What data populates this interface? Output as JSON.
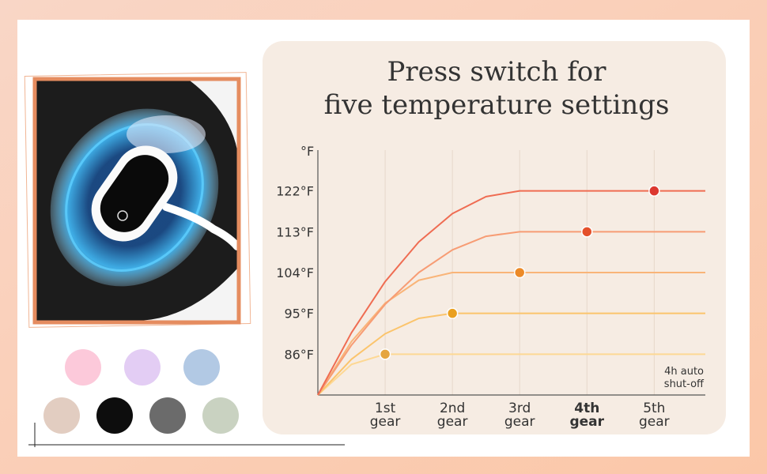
{
  "chart_data": {
    "type": "line",
    "title": [
      "Press switch for",
      "five temperature settings"
    ],
    "y_label": "°F",
    "x": [
      0,
      0.5,
      1,
      1.5,
      2,
      2.5,
      3,
      3.5,
      4,
      4.5,
      5,
      5.76
    ],
    "series": [
      {
        "color": "#fdd894",
        "values": [
          77,
          83.75,
          86,
          86,
          86,
          86,
          86,
          86,
          86,
          86,
          86,
          86
        ]
      },
      {
        "color": "#fbc46c",
        "values": [
          77,
          84.9,
          90.5,
          93.9,
          95,
          95,
          95,
          95,
          95,
          95,
          95,
          95
        ]
      },
      {
        "color": "#f9b478",
        "values": [
          77,
          88.8,
          97.25,
          102.3,
          104,
          104,
          104,
          104,
          104,
          104,
          104,
          104
        ]
      },
      {
        "color": "#f79c74",
        "values": [
          77,
          88,
          97,
          104,
          109,
          112,
          113,
          113,
          113,
          113,
          113,
          113
        ]
      },
      {
        "color": "#ef6c52",
        "values": [
          77,
          90.75,
          102,
          110.75,
          117,
          120.75,
          122,
          122,
          122,
          122,
          122,
          122
        ]
      }
    ],
    "markers": {
      "x": [
        1,
        2,
        3,
        4,
        5
      ],
      "values": [
        86,
        95,
        104,
        113,
        122
      ],
      "colors": [
        "#e5a540",
        "#eaa020",
        "#ec8a28",
        "#e4502a",
        "#dc3830"
      ]
    },
    "xlim": [
      0,
      5.76
    ],
    "ylim": [
      77,
      131
    ],
    "xticks": [
      {
        "value": 1,
        "label": "1st gear"
      },
      {
        "value": 2,
        "label": "2nd gear"
      },
      {
        "value": 3,
        "label": "3rd gear"
      },
      {
        "value": 4,
        "label": "4th gear"
      },
      {
        "value": 5,
        "label": "5th gear"
      }
    ],
    "yticks": [
      {
        "value": 86,
        "label": "86°F"
      },
      {
        "value": 95,
        "label": "95°F"
      },
      {
        "value": 104,
        "label": "104°F"
      },
      {
        "value": 113,
        "label": "113°F"
      },
      {
        "value": 122,
        "label": "122°F"
      }
    ],
    "annotation": [
      "4h auto",
      "shut-off"
    ],
    "grid": true
  }
}
